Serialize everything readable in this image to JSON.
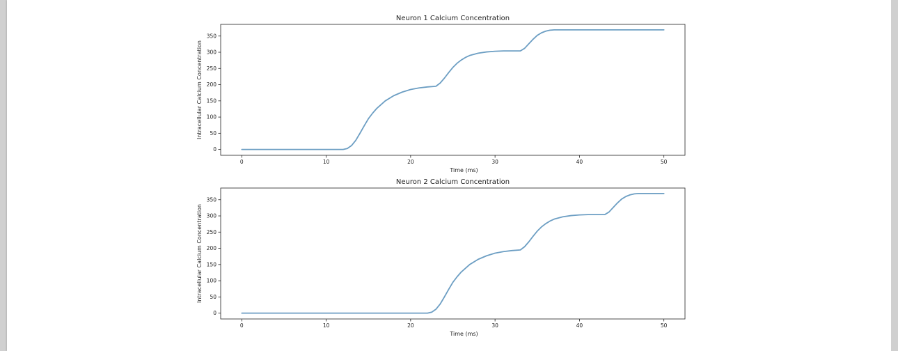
{
  "line_color": "#6c9ec3",
  "chart_data": [
    {
      "type": "line",
      "title": "Neuron 1 Calcium Concentration",
      "xlabel": "Time (ms)",
      "ylabel": "Intracellular Calcium Concentration",
      "xticks": [
        0,
        10,
        20,
        30,
        40,
        50
      ],
      "yticks": [
        0,
        50,
        100,
        150,
        200,
        250,
        300,
        350
      ],
      "xlim": [
        -2.5,
        52.5
      ],
      "ylim": [
        -18,
        386
      ],
      "grid": false,
      "series": [
        {
          "x": [
            0,
            2,
            4,
            6,
            8,
            10,
            12,
            12.5,
            13,
            13.5,
            14,
            14.5,
            15,
            15.5,
            16,
            17,
            18,
            19,
            20,
            21,
            22,
            23,
            23.5,
            24,
            24.5,
            25,
            25.5,
            26,
            26.5,
            27,
            28,
            29,
            30,
            31,
            32,
            33,
            33.5,
            34,
            34.5,
            35,
            35.5,
            36,
            36.5,
            37,
            37.5,
            38,
            40,
            42,
            44,
            46,
            48,
            50
          ],
          "values": [
            0,
            0,
            0,
            0,
            0,
            0,
            0,
            3,
            12,
            28,
            50,
            73,
            95,
            112,
            127,
            150,
            166,
            177,
            185,
            190,
            193,
            195,
            205,
            220,
            237,
            253,
            266,
            276,
            284,
            290,
            297,
            301,
            303,
            304,
            304,
            304,
            312,
            326,
            340,
            352,
            360,
            365,
            368,
            369,
            369,
            369,
            369,
            369,
            369,
            369,
            369,
            369
          ]
        }
      ]
    },
    {
      "type": "line",
      "title": "Neuron 2 Calcium Concentration",
      "xlabel": "Time (ms)",
      "ylabel": "Intracellular Calcium Concentration",
      "xticks": [
        0,
        10,
        20,
        30,
        40,
        50
      ],
      "yticks": [
        0,
        50,
        100,
        150,
        200,
        250,
        300,
        350
      ],
      "xlim": [
        -2.5,
        52.5
      ],
      "ylim": [
        -18,
        386
      ],
      "grid": false,
      "series": [
        {
          "x": [
            0,
            2,
            4,
            6,
            8,
            10,
            12,
            14,
            16,
            18,
            20,
            22,
            22.5,
            23,
            23.5,
            24,
            24.5,
            25,
            25.5,
            26,
            27,
            28,
            29,
            30,
            31,
            32,
            33,
            33.5,
            34,
            34.5,
            35,
            35.5,
            36,
            36.5,
            37,
            38,
            39,
            40,
            41,
            42,
            43,
            43.5,
            44,
            44.5,
            45,
            45.5,
            46,
            46.5,
            47,
            47.5,
            48,
            50
          ],
          "values": [
            0,
            0,
            0,
            0,
            0,
            0,
            0,
            0,
            0,
            0,
            0,
            0,
            3,
            12,
            28,
            50,
            73,
            95,
            112,
            127,
            150,
            166,
            177,
            185,
            190,
            193,
            195,
            205,
            220,
            237,
            253,
            266,
            276,
            284,
            290,
            297,
            301,
            303,
            304,
            304,
            304,
            312,
            326,
            340,
            352,
            360,
            365,
            368,
            369,
            369,
            369,
            369
          ]
        }
      ]
    }
  ]
}
